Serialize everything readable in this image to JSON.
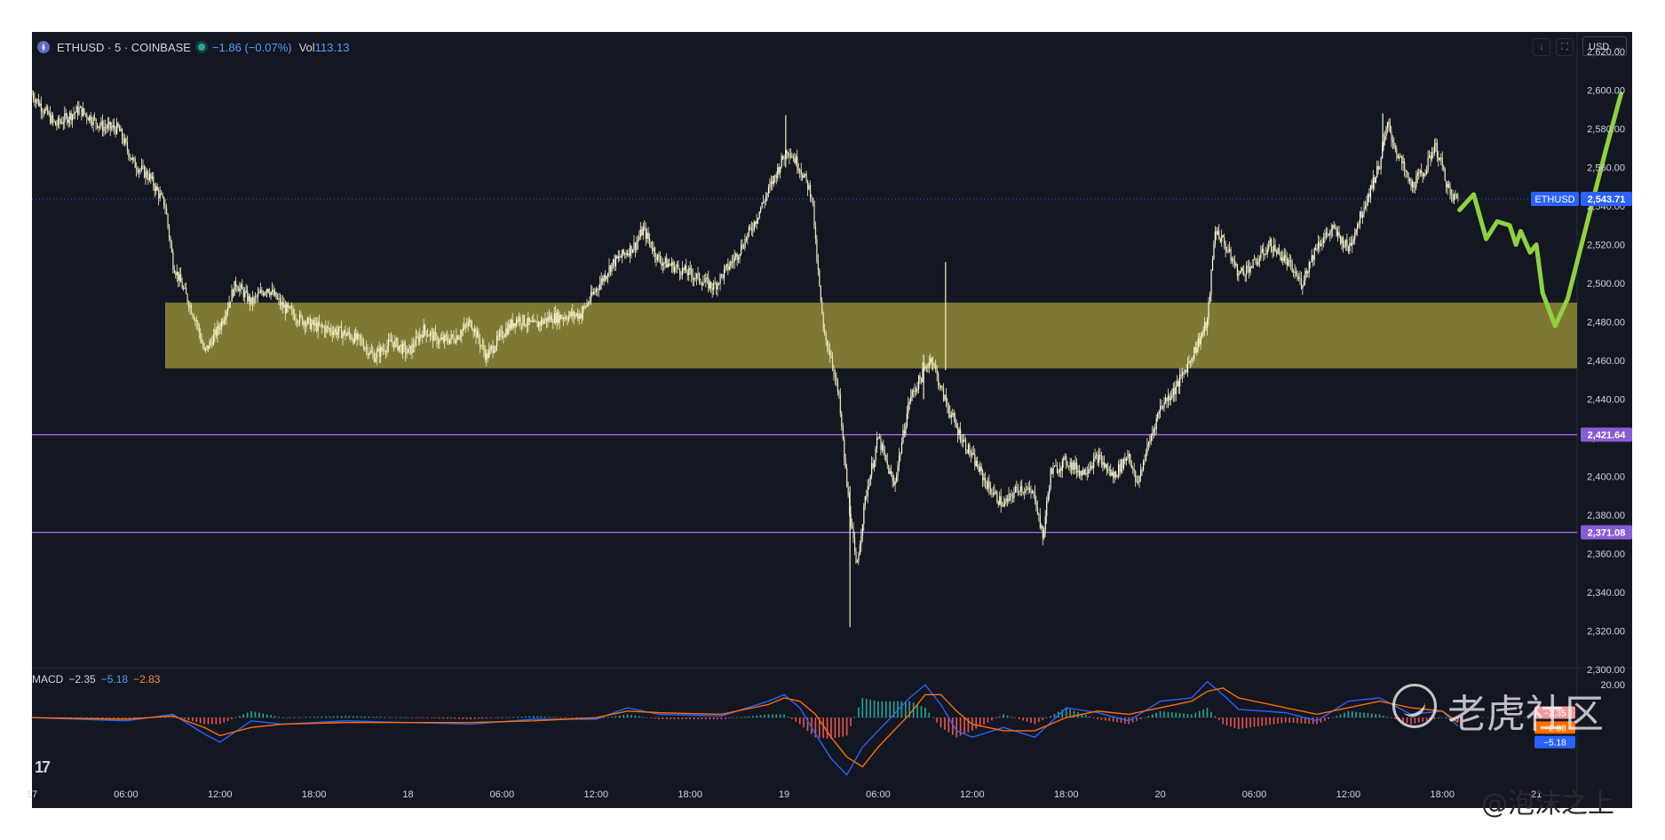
{
  "header": {
    "symbol": "ETHUSD · 5 · COINBASE",
    "change": "−1.86 (−0.07%)",
    "vol_label": "Vol",
    "vol_value": "113.13",
    "currency": "USD"
  },
  "macd_header": {
    "label": "MACD",
    "hist": "−2.35",
    "macd": "−5.18",
    "signal": "−2.83"
  },
  "watermark": {
    "site": "老虎社区",
    "author": "@泡沫之上"
  },
  "tv_logo": "17",
  "colors": {
    "background": "#131722",
    "candle": "#f5f3c2",
    "zone": "#8a8336",
    "level_line": "#a26ee8",
    "price_tag": "#2962ff",
    "projection": "#8fd13f",
    "macd": "#2962ff",
    "signal": "#ff6d00"
  },
  "chart_data": {
    "type": "candlestick",
    "symbol": "ETHUSD",
    "interval": "5",
    "exchange": "COINBASE",
    "price_axis": {
      "ticks": [
        2620,
        2600,
        2580,
        2560,
        2540,
        2520,
        2500,
        2480,
        2460,
        2440,
        2420,
        2400,
        2380,
        2360,
        2340,
        2320,
        2300
      ],
      "tick_labels": [
        "2,620.00",
        "2,600.00",
        "2,580.00",
        "2,560.00",
        "2,540.00",
        "2,520.00",
        "2,500.00",
        "2,480.00",
        "2,460.00",
        "2,440.00",
        "2,420.00",
        "2,400.00",
        "2,380.00",
        "2,360.00",
        "2,340.00",
        "2,320.00",
        "2,300.00"
      ],
      "range": [
        2301,
        2620
      ]
    },
    "time_axis": {
      "labels": [
        "17",
        "06:00",
        "12:00",
        "18:00",
        "18",
        "06:00",
        "12:00",
        "18:00",
        "19",
        "06:00",
        "12:00",
        "18:00",
        "20",
        "06:00",
        "12:00",
        "18:00",
        "21"
      ],
      "hours": [
        0,
        6,
        12,
        18,
        24,
        30,
        36,
        42,
        48,
        54,
        60,
        66,
        72,
        78,
        84,
        90,
        96
      ],
      "range": [
        0,
        98.6
      ]
    },
    "price_path": [
      [
        0.0,
        2598
      ],
      [
        1.5,
        2582
      ],
      [
        3,
        2590
      ],
      [
        4.5,
        2581
      ],
      [
        5.5,
        2580
      ],
      [
        6.5,
        2562
      ],
      [
        7.5,
        2555
      ],
      [
        8.5,
        2540
      ],
      [
        9,
        2510
      ],
      [
        10.5,
        2480
      ],
      [
        11,
        2464
      ],
      [
        12,
        2478
      ],
      [
        13,
        2500
      ],
      [
        14,
        2490
      ],
      [
        15,
        2498
      ],
      [
        16,
        2488
      ],
      [
        17,
        2482
      ],
      [
        18,
        2478
      ],
      [
        20,
        2474
      ],
      [
        21,
        2470
      ],
      [
        21.8,
        2462
      ],
      [
        23,
        2470
      ],
      [
        24,
        2464
      ],
      [
        25,
        2476
      ],
      [
        26,
        2470
      ],
      [
        27,
        2472
      ],
      [
        28,
        2480
      ],
      [
        29,
        2462
      ],
      [
        30,
        2474
      ],
      [
        31,
        2482
      ],
      [
        32,
        2478
      ],
      [
        33,
        2482
      ],
      [
        35,
        2484
      ],
      [
        37,
        2510
      ],
      [
        38.5,
        2520
      ],
      [
        39,
        2528
      ],
      [
        40,
        2512
      ],
      [
        42,
        2505
      ],
      [
        43.5,
        2498
      ],
      [
        45,
        2515
      ],
      [
        46,
        2530
      ],
      [
        47,
        2548
      ],
      [
        48.2,
        2570
      ],
      [
        49,
        2560
      ],
      [
        49.8,
        2545
      ],
      [
        50,
        2520
      ],
      [
        50.5,
        2475
      ],
      [
        51,
        2462
      ],
      [
        51.5,
        2440
      ],
      [
        52,
        2395
      ],
      [
        52.6,
        2352
      ],
      [
        53.2,
        2390
      ],
      [
        54,
        2420
      ],
      [
        55,
        2395
      ],
      [
        56,
        2440
      ],
      [
        57.4,
        2462
      ],
      [
        58,
        2445
      ],
      [
        59,
        2425
      ],
      [
        60,
        2410
      ],
      [
        61,
        2395
      ],
      [
        62,
        2385
      ],
      [
        63,
        2395
      ],
      [
        64,
        2390
      ],
      [
        64.5,
        2368
      ],
      [
        65,
        2402
      ],
      [
        66,
        2408
      ],
      [
        67,
        2402
      ],
      [
        68,
        2410
      ],
      [
        69,
        2400
      ],
      [
        70,
        2412
      ],
      [
        70.5,
        2395
      ],
      [
        71,
        2410
      ],
      [
        72,
        2436
      ],
      [
        73,
        2446
      ],
      [
        74,
        2462
      ],
      [
        75,
        2480
      ],
      [
        75.5,
        2528
      ],
      [
        76,
        2522
      ],
      [
        77,
        2505
      ],
      [
        78,
        2510
      ],
      [
        79,
        2520
      ],
      [
        80,
        2512
      ],
      [
        81,
        2500
      ],
      [
        82,
        2520
      ],
      [
        83,
        2528
      ],
      [
        84,
        2518
      ],
      [
        85,
        2540
      ],
      [
        86,
        2562
      ],
      [
        86.5,
        2582
      ],
      [
        87,
        2570
      ],
      [
        88,
        2550
      ],
      [
        89,
        2560
      ],
      [
        89.5,
        2572
      ],
      [
        90,
        2560
      ],
      [
        90.5,
        2545
      ],
      [
        91,
        2543.7
      ]
    ],
    "spikes": [
      {
        "x": 52.2,
        "high": 2395,
        "low": 2322
      },
      {
        "x": 58.3,
        "high": 2511,
        "low": 2455
      },
      {
        "x": 56.9,
        "high": 2463,
        "low": 2440
      },
      {
        "x": 48.1,
        "high": 2587,
        "low": 2560
      },
      {
        "x": 86.2,
        "high": 2588,
        "low": 2568
      }
    ],
    "current_price": {
      "value": 2543.71,
      "label": "ETHUSD",
      "text": "2,543.71"
    },
    "horizontal_levels": [
      {
        "value": 2421.64,
        "text": "2,421.64"
      },
      {
        "value": 2371.08,
        "text": "2,371.08"
      }
    ],
    "support_zone": {
      "from_hour": 8.5,
      "to_hour": 98.6,
      "low": 2456,
      "high": 2490
    },
    "projection_path": [
      [
        91.1,
        2538
      ],
      [
        92,
        2546
      ],
      [
        92.8,
        2523
      ],
      [
        93.5,
        2532
      ],
      [
        94.3,
        2530
      ],
      [
        94.7,
        2520
      ],
      [
        95,
        2527
      ],
      [
        95.6,
        2516
      ],
      [
        96,
        2520
      ],
      [
        96.4,
        2495
      ],
      [
        97.2,
        2478
      ],
      [
        98,
        2492
      ],
      [
        99.2,
        2530
      ],
      [
        100.4,
        2568
      ],
      [
        101.4,
        2598
      ]
    ],
    "macd": {
      "axis_tick": "20.00",
      "hist_label": "−2.35",
      "macd_label": "−5.18",
      "signal_label": "−2.83",
      "macd_line": [
        [
          0,
          0
        ],
        [
          6,
          -2
        ],
        [
          9,
          2
        ],
        [
          11,
          -10
        ],
        [
          12,
          -15
        ],
        [
          14,
          -2
        ],
        [
          16,
          -4
        ],
        [
          20,
          -2
        ],
        [
          24,
          -3
        ],
        [
          28,
          -4
        ],
        [
          32,
          -1
        ],
        [
          36,
          -1
        ],
        [
          38,
          6
        ],
        [
          40,
          2
        ],
        [
          44,
          1
        ],
        [
          47,
          10
        ],
        [
          48,
          14
        ],
        [
          49,
          6
        ],
        [
          50,
          -10
        ],
        [
          51,
          -25
        ],
        [
          52,
          -35
        ],
        [
          53,
          -18
        ],
        [
          54,
          -8
        ],
        [
          56,
          12
        ],
        [
          57,
          20
        ],
        [
          58,
          8
        ],
        [
          59,
          -8
        ],
        [
          60,
          -12
        ],
        [
          62,
          -6
        ],
        [
          64,
          -12
        ],
        [
          66,
          6
        ],
        [
          68,
          3
        ],
        [
          70,
          -2
        ],
        [
          72,
          10
        ],
        [
          74,
          12
        ],
        [
          75,
          22
        ],
        [
          76,
          14
        ],
        [
          77,
          5
        ],
        [
          80,
          3
        ],
        [
          82,
          -2
        ],
        [
          84,
          10
        ],
        [
          86,
          12
        ],
        [
          88,
          2
        ],
        [
          90,
          4
        ],
        [
          91,
          -5.18
        ]
      ],
      "signal_line": [
        [
          0,
          0
        ],
        [
          6,
          -1
        ],
        [
          9,
          1
        ],
        [
          11,
          -6
        ],
        [
          12,
          -11
        ],
        [
          14,
          -6
        ],
        [
          16,
          -4
        ],
        [
          20,
          -3
        ],
        [
          24,
          -3
        ],
        [
          28,
          -3
        ],
        [
          32,
          -2
        ],
        [
          36,
          0
        ],
        [
          38,
          4
        ],
        [
          40,
          3
        ],
        [
          44,
          2
        ],
        [
          47,
          8
        ],
        [
          48,
          12
        ],
        [
          49,
          10
        ],
        [
          50,
          2
        ],
        [
          51,
          -12
        ],
        [
          52,
          -24
        ],
        [
          53,
          -30
        ],
        [
          54,
          -18
        ],
        [
          56,
          2
        ],
        [
          57,
          14
        ],
        [
          58,
          14
        ],
        [
          59,
          4
        ],
        [
          60,
          -4
        ],
        [
          62,
          -8
        ],
        [
          64,
          -8
        ],
        [
          66,
          0
        ],
        [
          68,
          4
        ],
        [
          70,
          2
        ],
        [
          72,
          6
        ],
        [
          74,
          10
        ],
        [
          75,
          16
        ],
        [
          76,
          18
        ],
        [
          77,
          12
        ],
        [
          80,
          6
        ],
        [
          82,
          2
        ],
        [
          84,
          6
        ],
        [
          86,
          10
        ],
        [
          88,
          6
        ],
        [
          90,
          4
        ],
        [
          91,
          -2.83
        ]
      ],
      "range": [
        -40,
        25
      ]
    }
  }
}
